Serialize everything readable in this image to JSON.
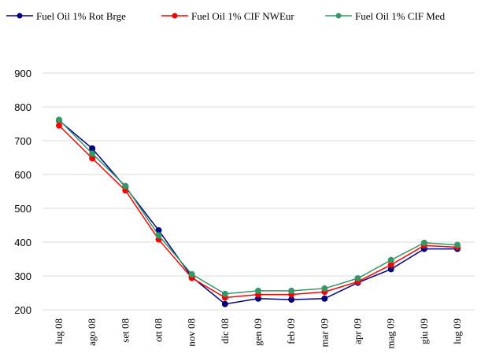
{
  "chart_data": {
    "type": "line",
    "categories": [
      "lug 08",
      "ago 08",
      "set 08",
      "ott 08",
      "nov 08",
      "dic 08",
      "gen 09",
      "feb 09",
      "mar 09",
      "apr 09",
      "mag 09",
      "giu 09",
      "lug 09"
    ],
    "series": [
      {
        "name": "Fuel Oil 1% Rot Brge",
        "color": "#000080",
        "values": [
          760,
          677,
          563,
          435,
          297,
          217,
          233,
          230,
          233,
          280,
          320,
          380,
          380
        ]
      },
      {
        "name": "Fuel Oil 1% CIF NWEur",
        "color": "#ff0000",
        "values": [
          745,
          648,
          553,
          408,
          294,
          236,
          245,
          245,
          253,
          283,
          333,
          390,
          385
        ]
      },
      {
        "name": "Fuel Oil 1% CIF Med",
        "color": "#339966",
        "values": [
          762,
          662,
          566,
          420,
          305,
          247,
          256,
          256,
          263,
          293,
          347,
          398,
          392
        ]
      }
    ],
    "ylim": [
      200,
      900
    ],
    "yticks": [
      200,
      300,
      400,
      500,
      600,
      700,
      800,
      900
    ],
    "grid": true
  }
}
